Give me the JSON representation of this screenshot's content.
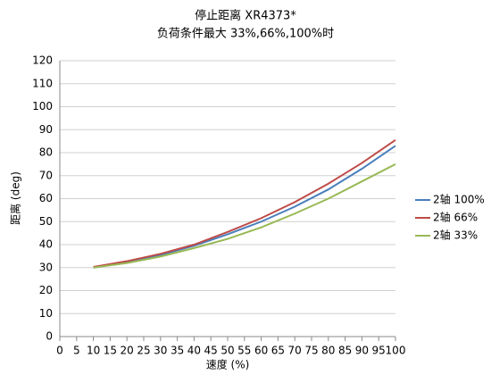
{
  "chart_data": {
    "type": "line",
    "title": "停止距离 XR4373*",
    "subtitle": "负荷条件最大 33%,66%,100%时",
    "x_label": "速度 (%)",
    "y_label": "距离 (deg)",
    "x": [
      10,
      20,
      30,
      40,
      50,
      60,
      70,
      80,
      90,
      100
    ],
    "series": [
      {
        "name": "2轴 100%",
        "color": "#4a7ebb",
        "values": [
          30,
          32.5,
          35.5,
          39.5,
          44.5,
          50,
          56.5,
          64,
          73,
          83
        ]
      },
      {
        "name": "2轴 66%",
        "color": "#be4b48",
        "values": [
          30.3,
          32.8,
          36,
          40,
          45.5,
          51.5,
          58.5,
          66.5,
          75.5,
          85.5
        ]
      },
      {
        "name": "2轴 33%",
        "color": "#98b954",
        "values": [
          30,
          32,
          34.8,
          38.5,
          42.5,
          47.5,
          53.5,
          60,
          67.5,
          75
        ]
      }
    ],
    "xlim": [
      0,
      100
    ],
    "xticks": [
      0,
      5,
      10,
      15,
      20,
      25,
      30,
      35,
      40,
      45,
      50,
      55,
      60,
      65,
      70,
      75,
      80,
      85,
      90,
      95,
      100
    ],
    "ylim": [
      0,
      120
    ],
    "yticks": [
      0,
      10,
      20,
      30,
      40,
      50,
      60,
      70,
      80,
      90,
      100,
      110,
      120
    ],
    "grid": true,
    "legend": "right"
  }
}
